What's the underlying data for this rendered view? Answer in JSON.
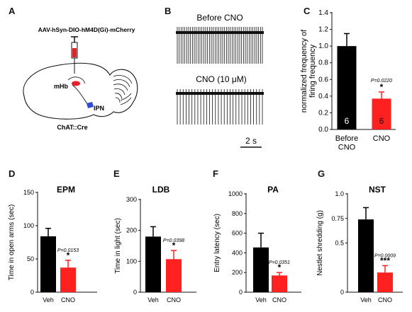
{
  "panel_labels": [
    "A",
    "B",
    "C",
    "D",
    "E",
    "F",
    "G"
  ],
  "panel_a": {
    "virus_label": "AAV-hSyn-DIO-hM4D(Gi)-mCherry",
    "mhb_label": "mHb",
    "ipn_label": "IPN",
    "mouse_line": "ChAT::Cre"
  },
  "panel_b": {
    "before_label": "Before CNO",
    "cno_label": "CNO (10 μM)",
    "scale_label": "2 s"
  },
  "colors": {
    "veh": "#000000",
    "cno": "#ff2020"
  },
  "chart_data": [
    {
      "panel": "C",
      "type": "bar",
      "title": "",
      "ylabel": "normalized frequency of firing frequency",
      "categories": [
        "Before CNO",
        "CNO"
      ],
      "values": [
        1.0,
        0.37
      ],
      "errors": [
        0.15,
        0.08
      ],
      "n_labels": [
        "6",
        "6"
      ],
      "ylim": [
        0,
        1.4
      ],
      "yticks": [
        "0.0",
        "0.2",
        "0.4",
        "0.6",
        "0.8",
        "1.0",
        "1.2",
        "1.4"
      ],
      "p_text": "P=0.0220",
      "sig": "*"
    },
    {
      "panel": "D",
      "type": "bar",
      "title": "EPM",
      "ylabel": "Time in open arms (sec)",
      "categories": [
        "Veh",
        "CNO"
      ],
      "values": [
        84,
        37
      ],
      "errors": [
        12,
        11
      ],
      "ylim": [
        0,
        150
      ],
      "yticks": [
        "0",
        "50",
        "100",
        "150"
      ],
      "p_text": "P=0.0153",
      "sig": "*"
    },
    {
      "panel": "E",
      "type": "bar",
      "title": "LDB",
      "ylabel": "Time in light (sec)",
      "categories": [
        "Veh",
        "CNO"
      ],
      "values": [
        180,
        107
      ],
      "errors": [
        32,
        28
      ],
      "ylim": [
        0,
        300
      ],
      "yticks": [
        "0",
        "100",
        "200",
        "300"
      ],
      "p_text": "P=0.0398",
      "sig": "*"
    },
    {
      "panel": "F",
      "type": "bar",
      "title": "PA",
      "ylabel": "Entry latency (sec)",
      "categories": [
        "Veh",
        "CNO"
      ],
      "values": [
        455,
        170
      ],
      "errors": [
        145,
        30
      ],
      "ylim": [
        0,
        1000
      ],
      "yticks": [
        "0",
        "200",
        "400",
        "600",
        "800",
        "1000"
      ],
      "p_text": "P=0.0351",
      "sig": "*"
    },
    {
      "panel": "G",
      "type": "bar",
      "title": "NST",
      "ylabel": "Nestlet shredding (g)",
      "categories": [
        "Veh",
        "CNO"
      ],
      "values": [
        0.74,
        0.2
      ],
      "errors": [
        0.12,
        0.07
      ],
      "ylim": [
        0,
        1.0
      ],
      "yticks": [
        "0",
        "0.5",
        "0.75",
        "1.0"
      ],
      "p_text": "P=0.0009",
      "sig": "***"
    }
  ]
}
